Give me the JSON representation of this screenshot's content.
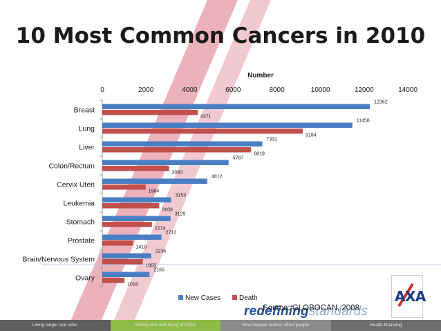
{
  "page": {
    "title": "10 Most Common Cancers in 2010"
  },
  "chart_data": {
    "type": "bar",
    "orientation": "horizontal",
    "axis_title": "Number",
    "xlim": [
      0,
      14000
    ],
    "ticks": [
      0,
      2000,
      4000,
      6000,
      8000,
      10000,
      12000,
      14000
    ],
    "tick_labels": [
      "0",
      "2000",
      "4000",
      "6000",
      "8000",
      "10000",
      "12000",
      "14000"
    ],
    "categories": [
      "Breast",
      "Lung",
      "Liver",
      "Colon/Rectum",
      "Cervix Uteri",
      "Leukemia",
      "Stomach",
      "Prostate",
      "Brain/Nervous System",
      "Ovary"
    ],
    "series": [
      {
        "name": "New Cases",
        "color": "#4a7ec4",
        "values": [
          12262,
          11458,
          7331,
          5787,
          4812,
          3153,
          3129,
          2712,
          2236,
          2165
        ]
      },
      {
        "name": "Death",
        "color": "#c0504d",
        "values": [
          4371,
          9184,
          6819,
          3060,
          1984,
          2609,
          2274,
          1410,
          1855,
          1016
        ]
      }
    ],
    "legend_position": "bottom",
    "grid": false
  },
  "source_text": "Source: GLOBOCAN, 2008",
  "tagline": {
    "part1": "redefining",
    "part2": "standards"
  },
  "logo": {
    "name": "AXA"
  },
  "footer": {
    "items": [
      {
        "label": "Living longer and older",
        "color": "#5e5e5e"
      },
      {
        "label": "Getting sick and dying of NCDs",
        "color": "#8dbb45"
      },
      {
        "label": "How disease factors affect people",
        "color": "#8a8a8a"
      },
      {
        "label": "Health financing",
        "color": "#6e6e6e"
      }
    ]
  }
}
